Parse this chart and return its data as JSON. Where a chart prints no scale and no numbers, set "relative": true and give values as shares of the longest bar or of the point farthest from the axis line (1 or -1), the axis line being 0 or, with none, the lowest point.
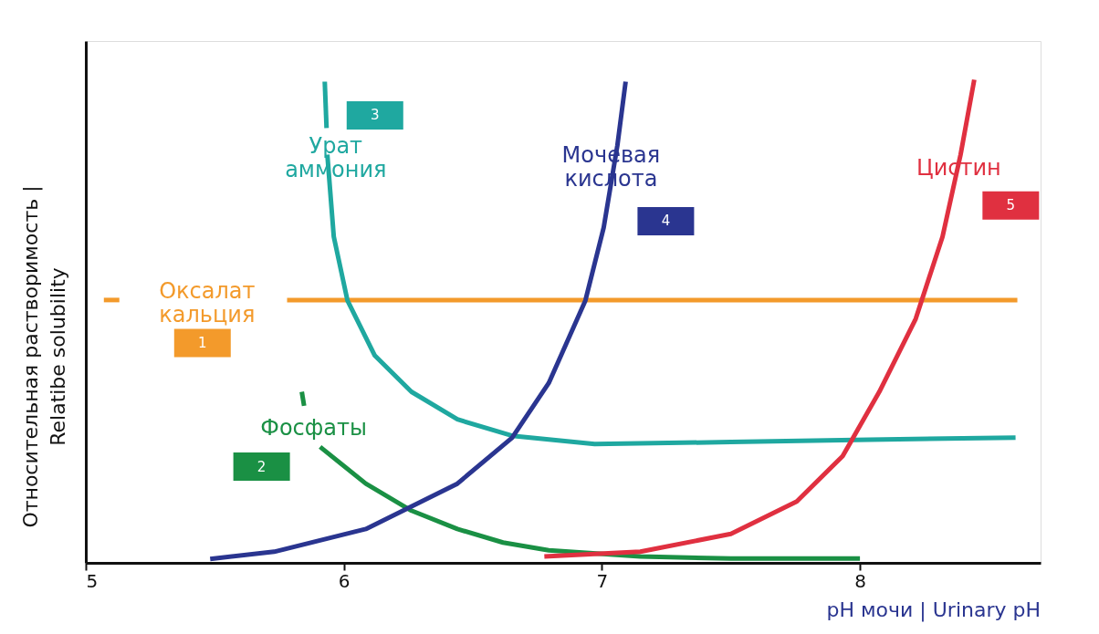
{
  "chart_data": {
    "type": "line",
    "relative": true,
    "xlabel": "pH мочи | Urinary pH",
    "ylabel": "Относительная растворимость | Relatibe solubility",
    "xlim": [
      5,
      8.7
    ],
    "xticks": [
      5,
      6,
      7,
      8
    ],
    "annotations": [
      "1",
      "2",
      "3",
      "4",
      "5"
    ],
    "series": [
      {
        "name": "Оксалат кальция",
        "color": "#f39a2b",
        "x": [
          5.07,
          5.13,
          5.4,
          5.78,
          8.61
        ],
        "values": [
          0.544,
          0.544,
          null,
          0.544,
          0.544
        ]
      },
      {
        "name": "Фосфаты",
        "color": "#1a9044",
        "x": [
          5.837,
          5.846,
          5.87,
          5.908,
          6.085,
          6.262,
          6.44,
          6.617,
          6.794,
          7.149,
          7.5,
          8.0
        ],
        "values": [
          0.354,
          0.325,
          null,
          0.24,
          0.164,
          0.108,
          0.07,
          0.042,
          0.026,
          0.013,
          0.009,
          0.009
        ]
      },
      {
        "name": "Урат аммония",
        "color": "#1fa8a0",
        "x": [
          5.926,
          5.933,
          5.934,
          5.936,
          5.961,
          6.014,
          6.12,
          6.262,
          6.44,
          6.652,
          6.972,
          7.5,
          8.035,
          8.603
        ],
        "values": [
          0.996,
          0.9,
          null,
          0.845,
          0.675,
          0.543,
          0.429,
          0.354,
          0.297,
          0.263,
          0.246,
          0.25,
          0.255,
          0.259
        ]
      },
      {
        "name": "Мочевая кислота",
        "color": "#2a3590",
        "x": [
          5.482,
          5.73,
          6.085,
          6.44,
          6.652,
          6.794,
          6.936,
          7.007,
          7.06,
          7.092
        ],
        "values": [
          0.008,
          0.023,
          0.07,
          0.164,
          0.259,
          0.372,
          0.543,
          0.694,
          0.864,
          0.996
        ]
      },
      {
        "name": "Цистин",
        "color": "#e03040",
        "x": [
          6.777,
          7.149,
          7.5,
          7.755,
          7.933,
          8.075,
          8.216,
          8.32,
          8.39,
          8.443
        ],
        "values": [
          0.013,
          0.023,
          0.06,
          0.127,
          0.221,
          0.354,
          0.505,
          0.675,
          0.845,
          1.0
        ]
      }
    ]
  }
}
